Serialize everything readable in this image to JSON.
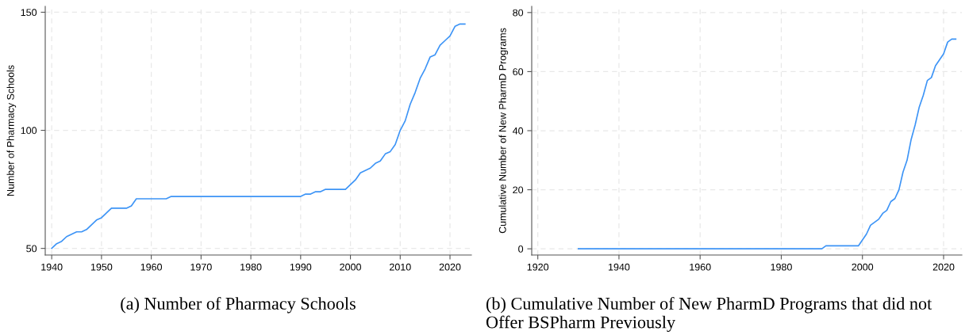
{
  "chart_data": [
    {
      "type": "line",
      "title": "(a) Number of Pharmacy Schools",
      "ylabel": "Number of Pharmacy Schools",
      "grid": true,
      "line_style": "solid",
      "xlim": [
        1938.7,
        2024.3
      ],
      "ylim": [
        47.2,
        152.5
      ],
      "xticks": [
        1940,
        1950,
        1960,
        1970,
        1980,
        1990,
        2000,
        2010,
        2020
      ],
      "yticks": [
        50,
        100,
        150
      ],
      "x": [
        1940,
        1941,
        1942,
        1943,
        1944,
        1945,
        1946,
        1947,
        1948,
        1949,
        1950,
        1951,
        1952,
        1955,
        1956,
        1957,
        1963,
        1964,
        1990,
        1991,
        1992,
        1993,
        1994,
        1995,
        1999,
        2000,
        2001,
        2002,
        2003,
        2004,
        2005,
        2006,
        2007,
        2008,
        2009,
        2010,
        2011,
        2012,
        2013,
        2014,
        2015,
        2016,
        2017,
        2018,
        2019,
        2020,
        2021,
        2022,
        2023
      ],
      "series": [
        {
          "color": "#3d94f6",
          "values": [
            50,
            52,
            53,
            55,
            56,
            57,
            57,
            58,
            60,
            62,
            63,
            65,
            67,
            67,
            68,
            71,
            71,
            72,
            72,
            73,
            73,
            74,
            74,
            75,
            75,
            77,
            79,
            82,
            83,
            84,
            86,
            87,
            90,
            91,
            94,
            100,
            104,
            111,
            116,
            122,
            126,
            131,
            132,
            136,
            138,
            140,
            144,
            145,
            145
          ]
        }
      ]
    },
    {
      "type": "line",
      "title": "(b) Cumulative Number of New PharmD Programs that did not Offer BSPharm Previously",
      "ylabel": "Cumulative Number of New PharmD Programs",
      "grid": true,
      "line_style": "solid",
      "xlim": [
        1918.5,
        2024.5
      ],
      "ylim": [
        -2.1,
        82.1
      ],
      "xticks": [
        1920,
        1940,
        1960,
        1980,
        2000,
        2020
      ],
      "yticks": [
        0,
        20,
        40,
        60,
        80
      ],
      "x": [
        1930,
        1990,
        1991,
        1999,
        2000,
        2001,
        2002,
        2003,
        2004,
        2005,
        2006,
        2007,
        2008,
        2009,
        2010,
        2011,
        2012,
        2013,
        2014,
        2015,
        2016,
        2017,
        2018,
        2019,
        2020,
        2021,
        2022,
        2023
      ],
      "series": [
        {
          "color": "#3d94f6",
          "values": [
            0,
            0,
            1,
            1,
            3,
            5,
            8,
            9,
            10,
            12,
            13,
            16,
            17,
            20,
            26,
            30,
            37,
            42,
            48,
            52,
            57,
            58,
            62,
            64,
            66,
            70,
            71,
            71
          ]
        }
      ]
    }
  ]
}
